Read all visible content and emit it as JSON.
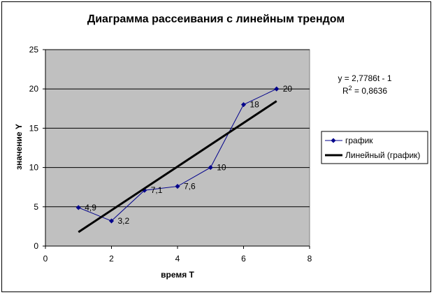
{
  "chart_data": {
    "type": "scatter",
    "title": "Диаграмма рассеивания с линейным трендом",
    "xlabel": "время Т",
    "ylabel": "значение Y",
    "xlim": [
      0,
      8
    ],
    "ylim": [
      0,
      25
    ],
    "x_ticks": [
      "0",
      "2",
      "4",
      "6",
      "8"
    ],
    "y_ticks": [
      "0",
      "5",
      "10",
      "15",
      "20",
      "25"
    ],
    "grid": true,
    "legend_position": "right",
    "series": [
      {
        "name": "график",
        "color": "#00008B",
        "x": [
          1,
          2,
          3,
          4,
          5,
          6,
          7
        ],
        "y": [
          4.9,
          3.2,
          7.1,
          7.6,
          10,
          18,
          20
        ],
        "labels": [
          "4,9",
          "3,2",
          "7,1",
          "7,6",
          "10",
          "18",
          "20"
        ]
      }
    ],
    "trendline": {
      "name": "Линейный (график)",
      "color": "#000000",
      "slope": 2.7786,
      "intercept": -1,
      "x_range": [
        1,
        7
      ],
      "equation": "y = 2,7786t - 1",
      "r2_prefix": "R",
      "r2_sup": "2",
      "r2_suffix": " = 0,8636"
    },
    "plot_background": "#C0C0C0"
  }
}
